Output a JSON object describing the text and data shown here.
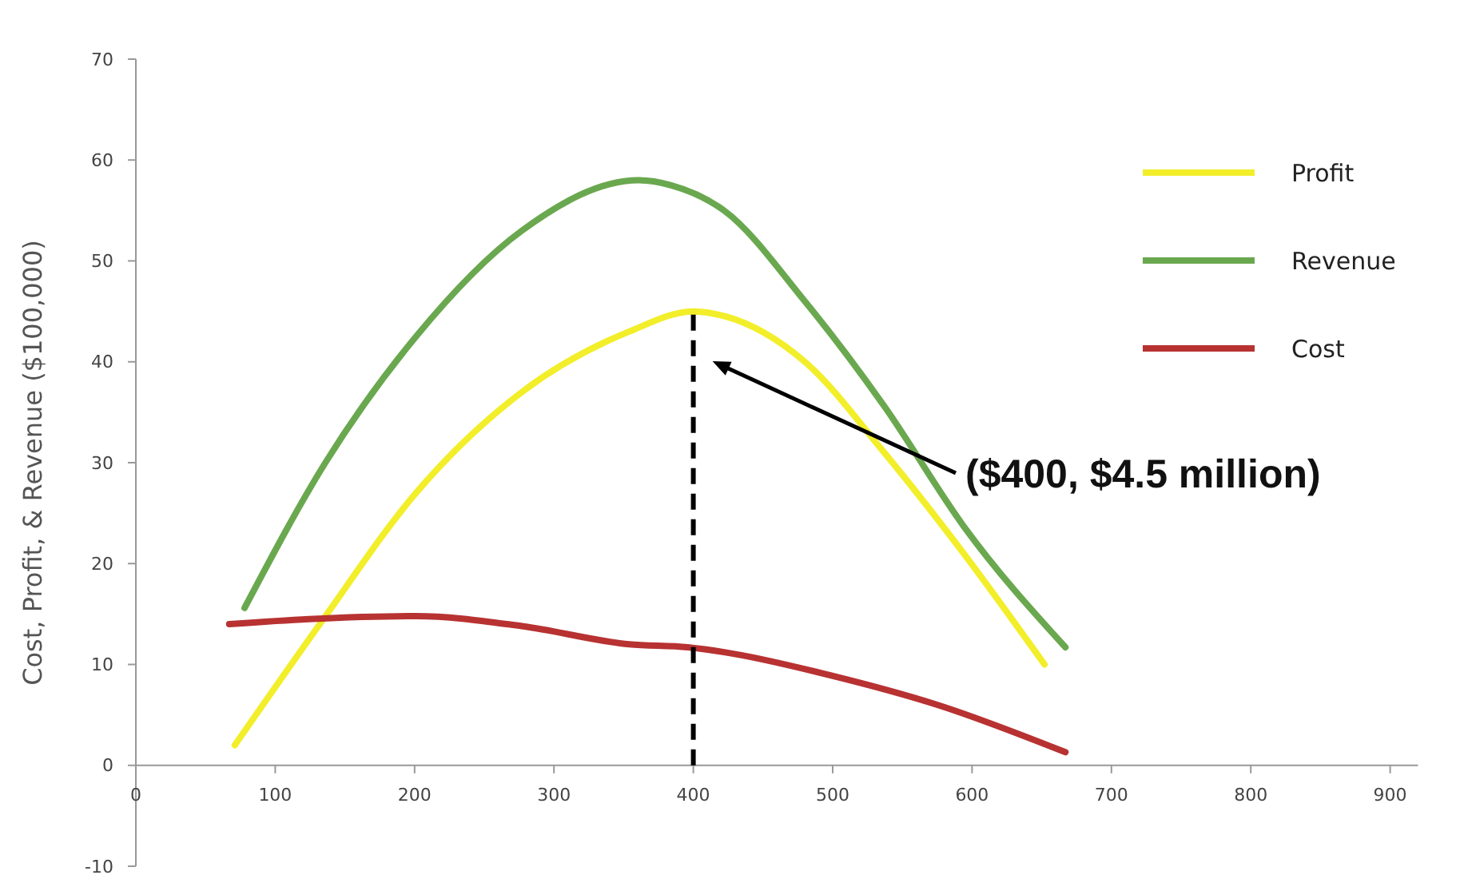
{
  "chart_data": {
    "type": "line",
    "ylabel": "Cost, Profit, & Revenue ($100,000)",
    "xlim": [
      0,
      920
    ],
    "xticks": [
      0,
      100,
      200,
      300,
      400,
      500,
      600,
      700,
      800,
      900
    ],
    "ylim": [
      -10,
      70
    ],
    "yticks": [
      -10,
      0,
      10,
      20,
      30,
      40,
      50,
      60,
      70
    ],
    "grid": false,
    "legend": "right",
    "marker": "none",
    "line_style": "solid",
    "series": [
      {
        "name": "Profit",
        "color": "#f2ee2a",
        "x": [
          71,
          132,
          201,
          277,
          354,
          400,
          423,
          480,
          537,
          594,
          652
        ],
        "values": [
          2,
          14,
          27,
          37,
          43,
          45,
          44.5,
          40,
          31,
          21,
          10
        ]
      },
      {
        "name": "Revenue",
        "color": "#6aa84f",
        "x": [
          78,
          136,
          201,
          277,
          361,
          384,
          422,
          480,
          537,
          594,
          667
        ],
        "values": [
          15.6,
          30,
          42.5,
          53,
          58,
          57.5,
          55,
          46,
          35.6,
          23.7,
          11.7
        ]
      },
      {
        "name": "Cost",
        "color": "#b83232",
        "x": [
          67,
          124,
          201,
          277,
          354,
          396,
          423,
          499,
          575,
          667
        ],
        "values": [
          14,
          14.5,
          14.8,
          13.8,
          12,
          11.7,
          11.2,
          8.9,
          6,
          1.3
        ]
      }
    ],
    "ref_lines": [
      {
        "axis": "x",
        "value": 400,
        "color": "#000000",
        "line_style": "dashed"
      }
    ],
    "annotations": [
      "($400, $4.5 million)"
    ]
  }
}
